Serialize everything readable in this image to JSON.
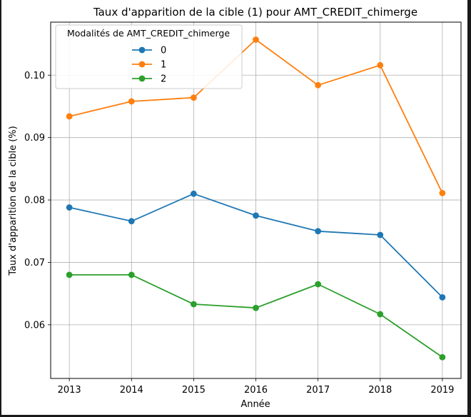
{
  "chart_data": {
    "type": "line",
    "title": "Taux d'apparition de la cible (1) pour AMT_CREDIT_chimerge",
    "xlabel": "Année",
    "ylabel": "Taux d'apparition de la cible (%)",
    "x": [
      2013,
      2014,
      2015,
      2016,
      2017,
      2018,
      2019
    ],
    "xlim": [
      2012.7,
      2019.3
    ],
    "ylim": [
      0.0514,
      0.1085
    ],
    "yticks": [
      0.06,
      0.07,
      0.08,
      0.09,
      0.1
    ],
    "ytick_labels": [
      "0.06",
      "0.07",
      "0.08",
      "0.09",
      "0.10"
    ],
    "xtick_labels": [
      "2013",
      "2014",
      "2015",
      "2016",
      "2017",
      "2018",
      "2019"
    ],
    "grid": true,
    "legend": {
      "title": "Modalités de AMT_CREDIT_chimerge",
      "placement": "top-left"
    },
    "series": [
      {
        "name": "0",
        "color": "#1f77b4",
        "values": [
          0.0788,
          0.0766,
          0.081,
          0.0775,
          0.075,
          0.0744,
          0.0644
        ]
      },
      {
        "name": "1",
        "color": "#ff7f0e",
        "values": [
          0.0934,
          0.0958,
          0.0964,
          0.1057,
          0.0984,
          0.1016,
          0.0811
        ]
      },
      {
        "name": "2",
        "color": "#2ca02c",
        "values": [
          0.068,
          0.068,
          0.0633,
          0.0627,
          0.0665,
          0.0617,
          0.0548
        ]
      }
    ]
  }
}
